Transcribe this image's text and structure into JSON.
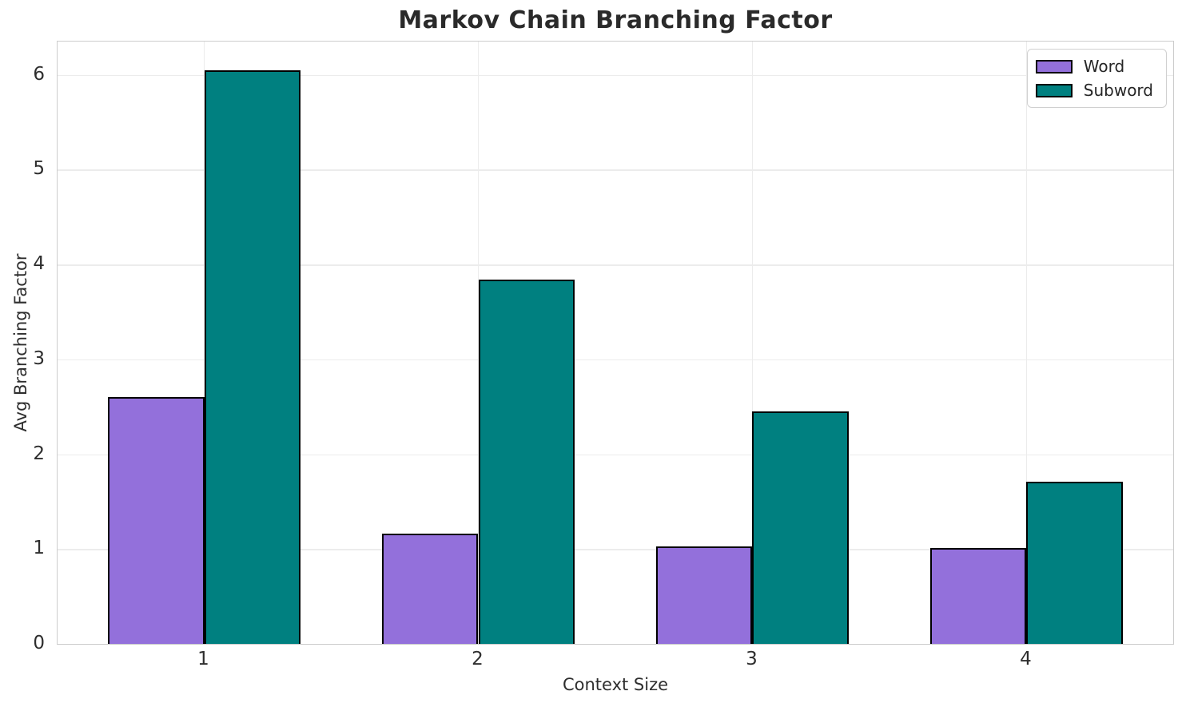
{
  "chart_data": {
    "type": "bar",
    "title": "Markov Chain Branching Factor",
    "xlabel": "Context Size",
    "ylabel": "Avg Branching Factor",
    "categories": [
      "1",
      "2",
      "3",
      "4"
    ],
    "series": [
      {
        "name": "Word",
        "color": "#9370DB",
        "values": [
          2.6,
          1.16,
          1.03,
          1.01
        ]
      },
      {
        "name": "Subword",
        "color": "#008080",
        "values": [
          6.05,
          3.84,
          2.45,
          1.71
        ]
      }
    ],
    "ylim": [
      0,
      6.35
    ],
    "yticks": [
      0,
      1,
      2,
      3,
      4,
      5,
      6
    ],
    "grid": true,
    "legend_position": "upper-right",
    "bar_edge_color": "#000000",
    "grid_color": "#ececec",
    "spine_color": "#cccccc"
  }
}
